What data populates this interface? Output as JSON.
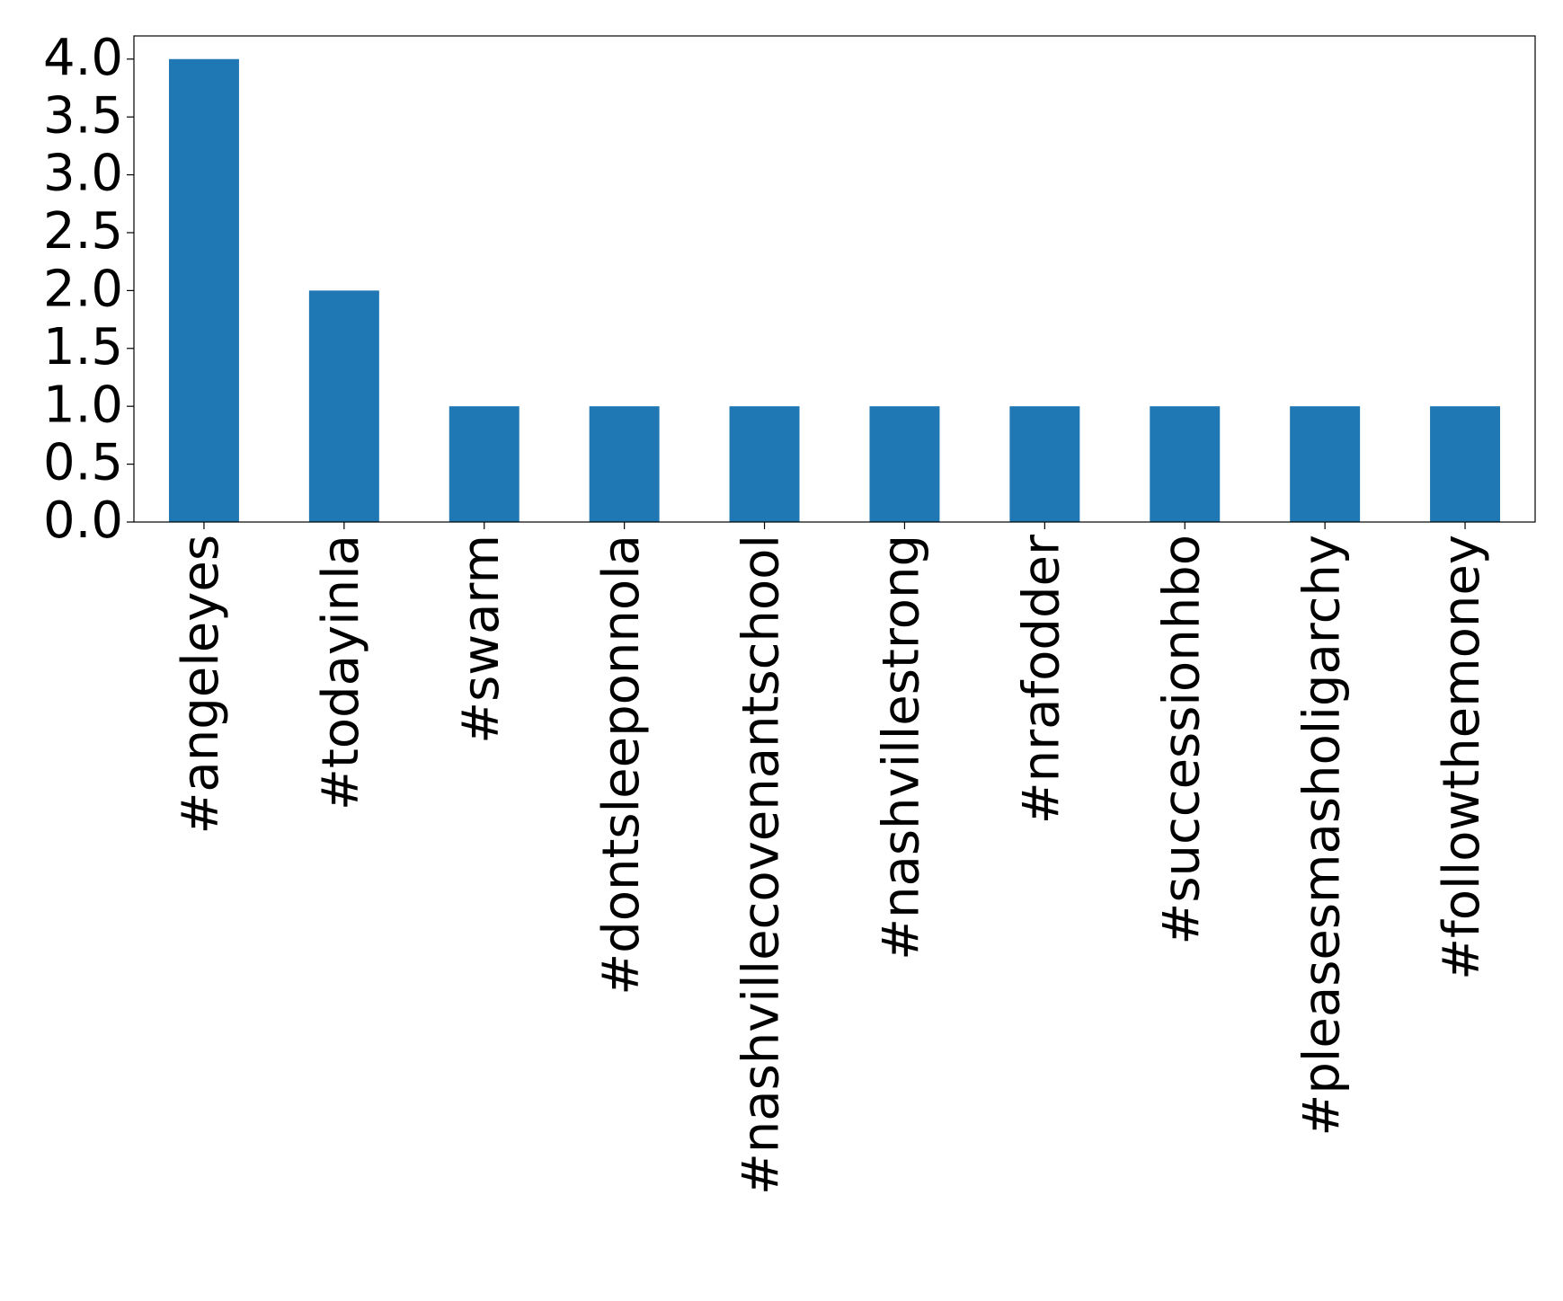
{
  "chart_data": {
    "type": "bar",
    "categories": [
      "#angeleyes",
      "#todayinla",
      "#swarm",
      "#dontsleeponnola",
      "#nashvillecovenantschool",
      "#nashvillestrong",
      "#nrafodder",
      "#successionhbo",
      "#pleasesmasholigarchy",
      "#followthemoney"
    ],
    "values": [
      4,
      2,
      1,
      1,
      1,
      1,
      1,
      1,
      1,
      1
    ],
    "color": "#1f77b4",
    "ylim": [
      0,
      4.2
    ],
    "yticks": [
      {
        "value": 0,
        "label": "0.0"
      },
      {
        "value": 0.5,
        "label": "0.5"
      },
      {
        "value": 1,
        "label": "1.0"
      },
      {
        "value": 1.5,
        "label": "1.5"
      },
      {
        "value": 2,
        "label": "2.0"
      },
      {
        "value": 2.5,
        "label": "2.5"
      },
      {
        "value": 3,
        "label": "3.0"
      },
      {
        "value": 3.5,
        "label": "3.5"
      },
      {
        "value": 4,
        "label": "4.0"
      }
    ],
    "grid": false
  }
}
